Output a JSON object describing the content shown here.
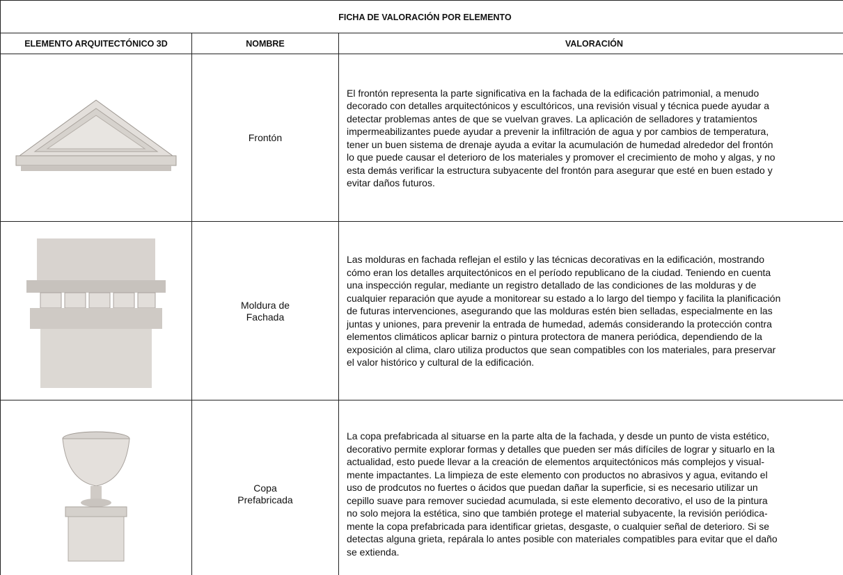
{
  "header": {
    "title": "FICHA DE VALORACIÓN POR ELEMENTO"
  },
  "table": {
    "columns": [
      "ELEMENTO ARQUITECTÓNICO 3D",
      "NOMBRE",
      "VALORACIÓN"
    ],
    "rows": [
      {
        "name": "Frontón",
        "lines": [
          "El frontón representa la parte significativa en la fachada de la edificación patrimonial, a menudo",
          "decorado con detalles arquitectónicos y escultóricos, una revisión visual y técnica puede ayudar a",
          "detectar problemas antes de que se vuelvan graves. La aplicación de selladores y tratamientos",
          "impermeabilizantes puede ayudar a prevenir la infiltración de agua y por cambios de temperatura,",
          "tener un buen sistema de drenaje ayuda a evitar la acumulación de humedad alrededor del frontón",
          "lo que puede causar el deterioro de los materiales y promover el crecimiento de moho y algas, y no",
          "esta demás verificar la estructura subyacente del frontón para asegurar que esté en buen estado y",
          "evitar daños futuros."
        ]
      },
      {
        "name": "Moldura de Fachada",
        "lines": [
          "Las molduras en fachada reflejan el estilo y las técnicas decorativas en la edificación, mostrando",
          "cómo eran los detalles arquitectónicos en el período republicano de la ciudad. Teniendo en cuenta",
          "una inspección regular, mediante un registro detallado de las condiciones de las molduras y de",
          "cualquier reparación que ayude a monitorear su estado a lo largo del tiempo y facilita la planificación",
          "de futuras intervenciones, asegurando que las molduras estén bien selladas, especialmente en las",
          "juntas y uniones, para prevenir la entrada de humedad, además considerando la protección contra",
          "elementos climáticos aplicar barniz o pintura protectora de manera periódica, dependiendo de la",
          "exposición al clima, claro utiliza productos que sean compatibles con los materiales, para preservar",
          "el valor histórico y cultural de la edificación."
        ]
      },
      {
        "name": "Copa Prefabricada",
        "lines": [
          "La copa prefabricada al situarse en la parte alta de la fachada, y desde un punto de vista estético,",
          "decorativo permite explorar formas y detalles que pueden ser más difíciles de lograr y situarlo en la",
          "actualidad, esto puede llevar a la creación de elementos arquitectónicos más complejos y visual-",
          "mente impactantes. La limpieza de este elemento con productos no abrasivos y agua, evitando el",
          "uso de prodcutos no fuertes o ácidos que puedan dañar la superficie, si es necesario utilizar un",
          "cepillo suave para remover suciedad acumulada, si este elemento decorativo, el uso de la pintura",
          "no solo mejora la estética, sino que también protege el material subyacente, la revisión periódica-",
          "mente la copa prefabricada para identificar grietas, desgaste, o cualquier señal de deterioro. Si se",
          "detectas alguna grieta, repárala lo antes posible con materiales compatibles para evitar que el daño",
          "se extienda."
        ]
      }
    ]
  }
}
